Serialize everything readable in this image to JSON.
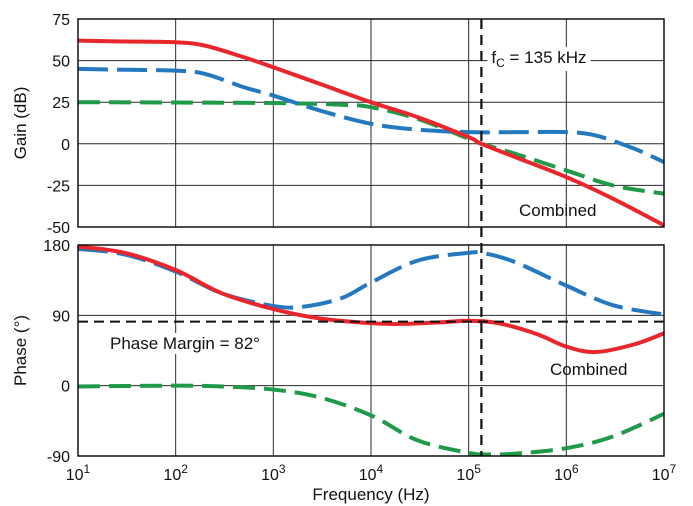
{
  "chart_data": [
    {
      "type": "line",
      "xscale": "log",
      "xlim": [
        10,
        10000000
      ],
      "ylim": [
        -50,
        75
      ],
      "ylabel": "Gain (dB)",
      "yticks": [
        "75",
        "50",
        "25",
        "0",
        "-25",
        "-50"
      ],
      "yticks_values": [
        75,
        50,
        25,
        0,
        -25,
        -50
      ],
      "grid": true,
      "annotations": {
        "fc_main": "f",
        "fc_sub": "C",
        "fc_rest": " = 135 kHz",
        "combined": "Combined"
      },
      "series": [
        {
          "color": "#e8262c",
          "dash": "solid",
          "x": [
            10,
            30,
            100,
            200,
            500,
            1000,
            3000,
            10000,
            30000,
            100000,
            135000,
            300000,
            1000000,
            3000000,
            10000000
          ],
          "y": [
            62,
            61.5,
            61,
            59,
            52,
            46,
            36,
            25,
            16,
            4,
            0,
            -8,
            -20,
            -33,
            -49
          ]
        },
        {
          "color": "#2478bf",
          "dash": "long-dash",
          "x": [
            10,
            30,
            100,
            200,
            500,
            1000,
            3000,
            10000,
            30000,
            100000,
            300000,
            1000000,
            2000000,
            5000000,
            10000000
          ],
          "y": [
            45,
            44.5,
            44,
            42,
            34,
            29,
            20,
            12,
            8.5,
            7,
            7,
            7,
            5,
            -3,
            -11
          ]
        },
        {
          "color": "#1f9a48",
          "dash": "dash",
          "x": [
            10,
            100,
            1000,
            5000,
            10000,
            30000,
            100000,
            135000,
            300000,
            1000000,
            3000000,
            10000000
          ],
          "y": [
            25,
            24.8,
            24.5,
            23.5,
            22,
            15,
            3,
            0,
            -6,
            -16,
            -25,
            -30
          ]
        }
      ]
    },
    {
      "type": "line",
      "xscale": "log",
      "xlim": [
        10,
        10000000
      ],
      "ylim": [
        -90,
        180
      ],
      "xlabel": "Frequency (Hz)",
      "ylabel": "Phase (°)",
      "xticks_base": [
        "10",
        "10",
        "10",
        "10",
        "10",
        "10",
        "10"
      ],
      "xticks_exp": [
        "1",
        "2",
        "3",
        "4",
        "5",
        "6",
        "7"
      ],
      "xticks_values": [
        10,
        100,
        1000,
        10000,
        100000,
        1000000,
        10000000
      ],
      "yticks": [
        "180",
        "90",
        "0",
        "-90"
      ],
      "yticks_values": [
        180,
        90,
        0,
        -90
      ],
      "grid": true,
      "reference_lines": {
        "phase_margin_y": 82,
        "crossover_x": 135000
      },
      "annotations": {
        "phase_margin": "Phase Margin = 82°",
        "combined": "Combined"
      },
      "series": [
        {
          "color": "#e8262c",
          "dash": "solid",
          "x": [
            10,
            30,
            100,
            300,
            1000,
            3000,
            10000,
            20000,
            50000,
            100000,
            200000,
            500000,
            1000000,
            2000000,
            5000000,
            10000000
          ],
          "y": [
            178,
            170,
            148,
            118,
            98,
            86,
            80,
            79,
            81,
            83,
            80,
            66,
            50,
            43,
            53,
            67
          ]
        },
        {
          "color": "#2478bf",
          "dash": "long-dash",
          "x": [
            10,
            30,
            100,
            300,
            1000,
            2000,
            5000,
            10000,
            30000,
            100000,
            150000,
            300000,
            1000000,
            3000000,
            10000000
          ],
          "y": [
            175,
            168,
            146,
            118,
            102,
            101,
            112,
            132,
            160,
            170,
            169,
            158,
            128,
            103,
            91
          ]
        },
        {
          "color": "#1f9a48",
          "dash": "dash",
          "x": [
            10,
            100,
            300,
            1000,
            3000,
            10000,
            30000,
            100000,
            150000,
            300000,
            1000000,
            3000000,
            10000000
          ],
          "y": [
            -1,
            0,
            -1,
            -5,
            -15,
            -38,
            -70,
            -86,
            -88,
            -87,
            -80,
            -65,
            -36
          ]
        }
      ]
    }
  ]
}
